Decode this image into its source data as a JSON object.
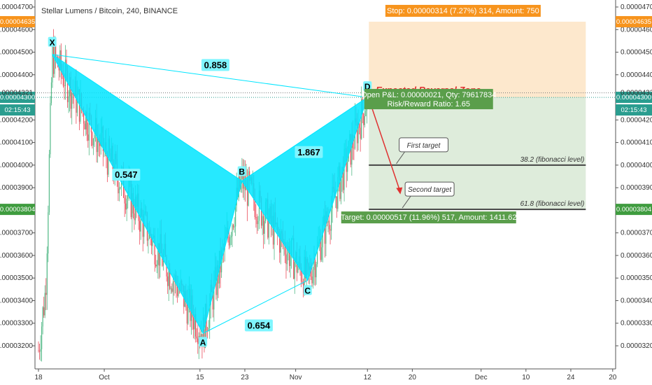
{
  "chart_data": {
    "type": "candlestick",
    "title": "Stellar Lumens / Bitcoin, 240, BINANCE",
    "y_ticks": [
      "0.00004700",
      "0.00004600",
      "0.00004500",
      "0.00004400",
      "0.00004300",
      "0.00004200",
      "0.00004100",
      "0.00004000",
      "0.00003900",
      "0.00003800",
      "0.00003700",
      "0.00003600",
      "0.00003500",
      "0.00003400",
      "0.00003300",
      "0.00003200"
    ],
    "x_ticks": [
      "18",
      "Oct",
      "15",
      "23",
      "Nov",
      "12",
      "20",
      "Dec",
      "10",
      "24",
      "20"
    ],
    "ylim": [
      3.12e-05,
      4.71e-05
    ],
    "price_tags": {
      "stop_level": "0.00004635",
      "entry_level": "0.00004300",
      "countdown": "02:15:43",
      "marker_level": "0.00004321",
      "target_level": "0.00003804"
    },
    "colors": {
      "up": "#53b987",
      "down": "#eb4d5c",
      "pattern": "#00e5ff",
      "stop": "#f7941d",
      "profit": "#5a9e4b"
    },
    "pattern_points": [
      {
        "label": "X",
        "x_day": 2.3,
        "y": 4.49e-05
      },
      {
        "label": "A",
        "x_day": 27.5,
        "y": 3.255e-05
      },
      {
        "label": "B",
        "x_day": 34.0,
        "y": 3.93e-05
      },
      {
        "label": "C",
        "x_day": 45.0,
        "y": 3.49e-05
      },
      {
        "label": "D",
        "x_day": 55.0,
        "y": 4.3e-05
      }
    ],
    "ratios": [
      "0.858",
      "0.547",
      "1.867",
      "0.654"
    ],
    "expected_zone": "Expected Reversal Zone",
    "stop_box": "Stop: 0.00000314 (7.27%) 314, Amount: 750",
    "pnl_box_line1": "Open P&L: 0.00000021, Qty: 79617834",
    "pnl_box_line2": "Risk/Reward Ratio: 1.65",
    "target_box": "Target: 0.00000517 (11.96%) 517, Amount: 1411.62",
    "targets": [
      {
        "callout": "First target",
        "level_label": "38.2 (fibonacci level)",
        "y": 4e-05
      },
      {
        "callout": "Second target",
        "level_label": "61.8 (fibonacci level)",
        "y": 3.804e-05
      }
    ],
    "trade": {
      "entry": 4.3e-05,
      "stop": 4.635e-05,
      "target": 3.804e-05
    }
  }
}
